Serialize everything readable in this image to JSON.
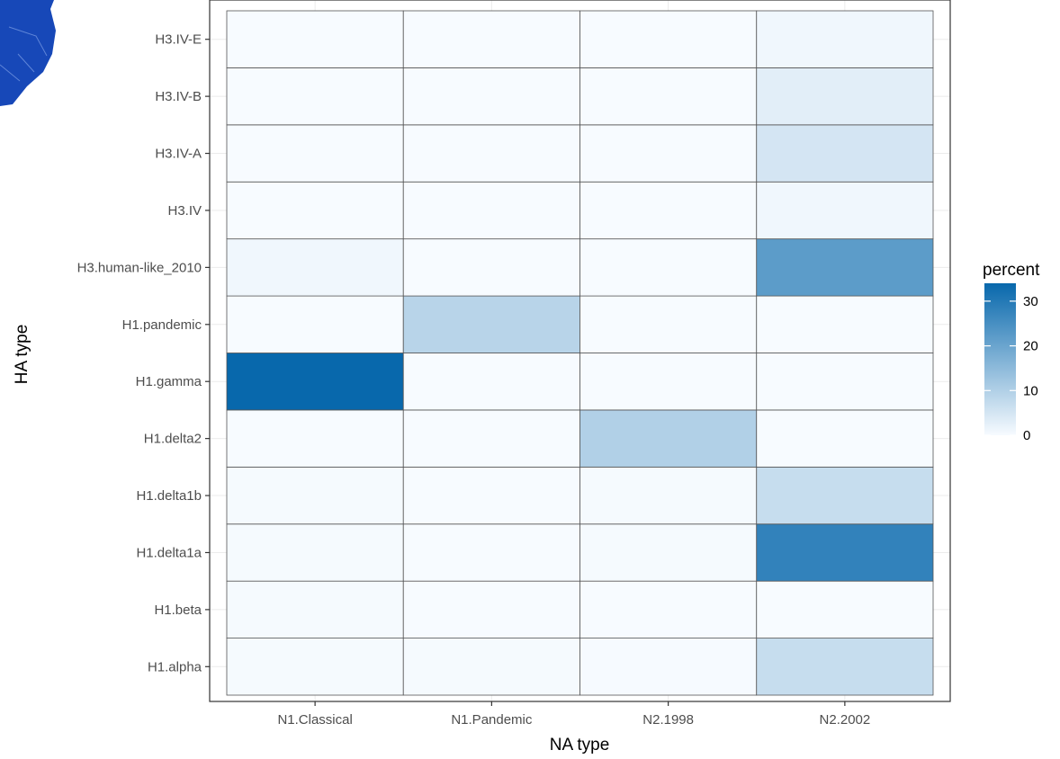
{
  "chart_data": {
    "type": "heatmap",
    "title": "",
    "xlabel": "NA type",
    "ylabel": "HA type",
    "x_categories": [
      "N1.Classical",
      "N1.Pandemic",
      "N2.1998",
      "N2.2002"
    ],
    "y_categories": [
      "H1.alpha",
      "H1.beta",
      "H1.delta1a",
      "H1.delta1b",
      "H1.delta2",
      "H1.gamma",
      "H1.pandemic",
      "H3.human-like_2010",
      "H3.IV",
      "H3.IV-A",
      "H3.IV-B",
      "H3.IV-E"
    ],
    "values": [
      [
        0.3,
        0.3,
        0.2,
        7
      ],
      [
        0.3,
        0,
        0,
        0
      ],
      [
        0.3,
        0,
        0.3,
        28
      ],
      [
        0.3,
        0,
        0.3,
        7
      ],
      [
        0,
        0,
        10,
        0
      ],
      [
        34,
        0,
        0,
        0
      ],
      [
        0,
        9,
        0,
        0
      ],
      [
        1,
        0,
        0,
        22
      ],
      [
        0,
        0,
        0,
        1
      ],
      [
        0,
        0,
        0,
        5
      ],
      [
        0,
        0,
        0,
        3
      ],
      [
        0,
        0,
        0,
        1
      ]
    ],
    "legend": {
      "title": "percent",
      "ticks": [
        0,
        10,
        20,
        30
      ],
      "range": [
        0,
        34
      ],
      "low_color": "#f7fbff",
      "high_color": "#0868ac",
      "placement": "right"
    },
    "grid": true
  }
}
